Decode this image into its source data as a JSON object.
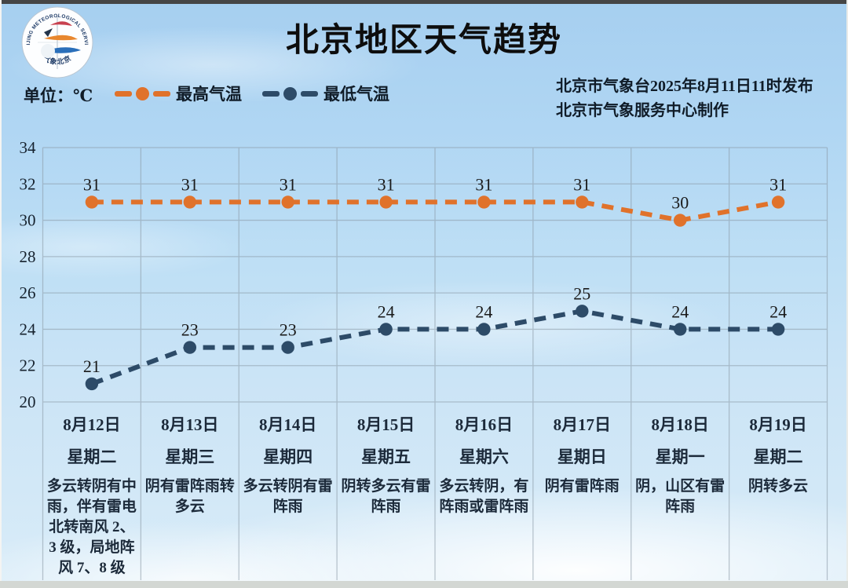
{
  "header": {
    "title": "北京地区天气趋势",
    "unit_label": "单位：℃",
    "publisher_line1": "北京市气象台2025年8月11日11时发布",
    "publisher_line2": "北京市气象服务中心制作",
    "logo": {
      "top_text": "BEIJING METEOROLOGICAL SERVICE",
      "bottom_text": "气象北京"
    },
    "legend": [
      {
        "label": "最高气温",
        "color": "#e0722b"
      },
      {
        "label": "最低气温",
        "color": "#2d4b68"
      }
    ]
  },
  "chart_data": {
    "type": "line",
    "title": "北京地区天气趋势",
    "xlabel": "",
    "ylabel": "℃",
    "ylim": [
      20,
      34
    ],
    "yticks": [
      20,
      22,
      24,
      26,
      28,
      30,
      32,
      34
    ],
    "grid": true,
    "legend_position": "top",
    "line_style": "dashed",
    "categories": [
      "8月12日",
      "8月13日",
      "8月14日",
      "8月15日",
      "8月16日",
      "8月17日",
      "8月18日",
      "8月19日"
    ],
    "weekdays": [
      "星期二",
      "星期三",
      "星期四",
      "星期五",
      "星期六",
      "星期日",
      "星期一",
      "星期二"
    ],
    "weather": [
      "多云转阴有中雨，伴有雷电北转南风 2、3 级，局地阵风 7、8 级",
      "阴有雷阵雨转多云",
      "多云转阴有雷阵雨",
      "阴转多云有雷阵雨",
      "多云转阴，有阵雨或雷阵雨",
      "阴有雷阵雨",
      "阴，山区有雷阵雨",
      "阴转多云"
    ],
    "series": [
      {
        "name": "最高气温",
        "color": "#e0722b",
        "values": [
          31,
          31,
          31,
          31,
          31,
          31,
          30,
          31
        ]
      },
      {
        "name": "最低气温",
        "color": "#2d4b68",
        "values": [
          21,
          23,
          23,
          24,
          24,
          25,
          24,
          24
        ]
      }
    ]
  },
  "colors": {
    "max_series": "#e0722b",
    "min_series": "#2d4b68",
    "gridline": "#8b9aa6",
    "sky_top": "#a6cff0",
    "sky_bottom": "#d9ecf8"
  }
}
